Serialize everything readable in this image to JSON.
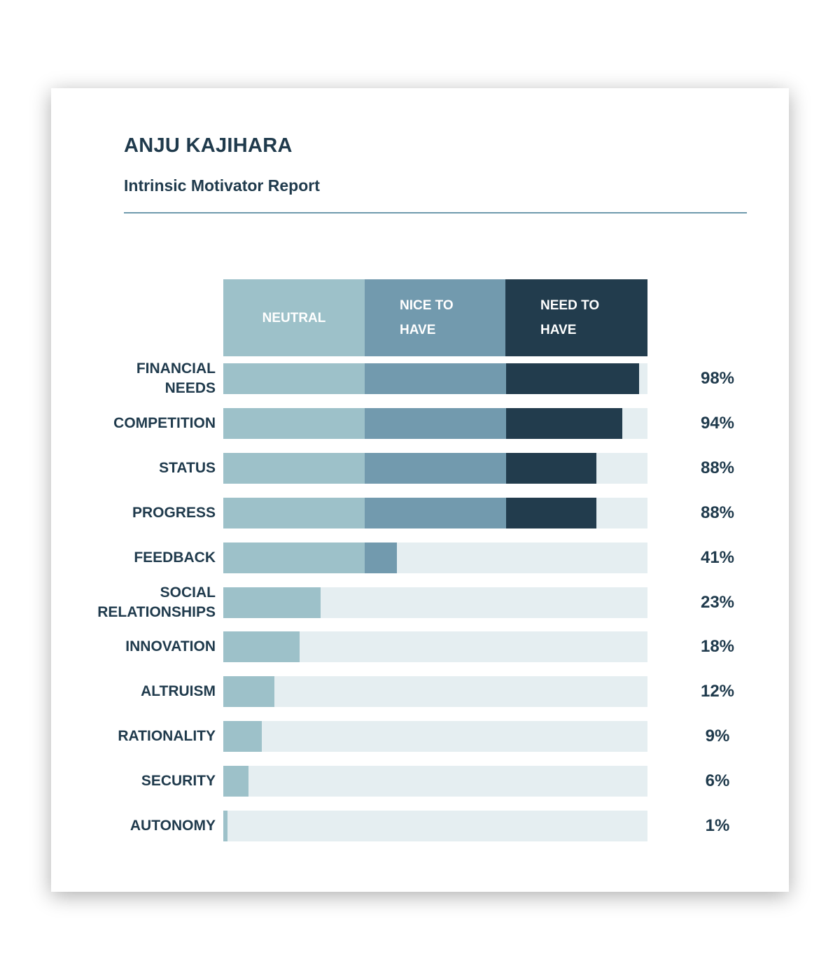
{
  "header": {
    "name": "ANJU KAJIHARA",
    "subtitle": "Intrinsic Motivator Report"
  },
  "colors": {
    "neutral": "#9dc1c9",
    "nice_to_have": "#729aae",
    "need_to_have": "#223c4d",
    "track": "#e5eef1",
    "text": "#1f3a4c"
  },
  "chart_data": {
    "type": "bar",
    "orientation": "horizontal",
    "stacked": true,
    "xlim": [
      0,
      100
    ],
    "bands": [
      {
        "name_lines": [
          "NEUTRAL"
        ],
        "from": 0,
        "to": 33.3
      },
      {
        "name_lines": [
          "NICE TO",
          "HAVE"
        ],
        "from": 33.3,
        "to": 66.6
      },
      {
        "name_lines": [
          "NEED TO",
          "HAVE"
        ],
        "from": 66.6,
        "to": 100
      }
    ],
    "categories": [
      {
        "label_lines": [
          "FINANCIAL",
          "NEEDS"
        ],
        "value": 98,
        "value_label": "98%"
      },
      {
        "label_lines": [
          "COMPETITION"
        ],
        "value": 94,
        "value_label": "94%"
      },
      {
        "label_lines": [
          "STATUS"
        ],
        "value": 88,
        "value_label": "88%"
      },
      {
        "label_lines": [
          "PROGRESS"
        ],
        "value": 88,
        "value_label": "88%"
      },
      {
        "label_lines": [
          "FEEDBACK"
        ],
        "value": 41,
        "value_label": "41%"
      },
      {
        "label_lines": [
          "SOCIAL",
          "RELATIONSHIPS"
        ],
        "value": 23,
        "value_label": "23%"
      },
      {
        "label_lines": [
          "INNOVATION"
        ],
        "value": 18,
        "value_label": "18%"
      },
      {
        "label_lines": [
          "ALTRUISM"
        ],
        "value": 12,
        "value_label": "12%"
      },
      {
        "label_lines": [
          "RATIONALITY"
        ],
        "value": 9,
        "value_label": "9%"
      },
      {
        "label_lines": [
          "SECURITY"
        ],
        "value": 6,
        "value_label": "6%"
      },
      {
        "label_lines": [
          "AUTONOMY"
        ],
        "value": 1,
        "value_label": "1%"
      }
    ]
  }
}
